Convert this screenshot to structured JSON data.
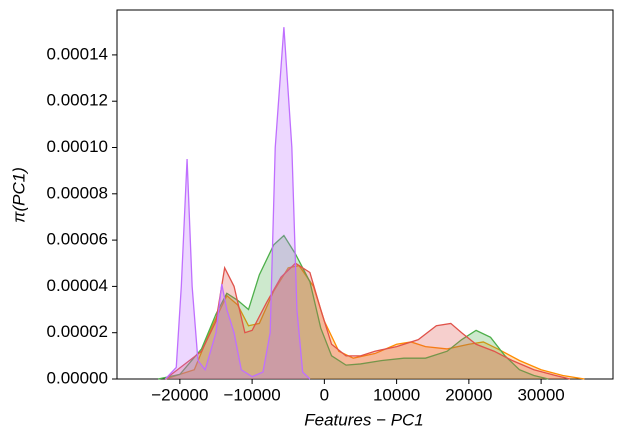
{
  "chart_data": {
    "type": "area",
    "x_label": "Features − PC1",
    "y_label": "π(PC1)",
    "xlim": [
      -28700,
      39950
    ],
    "ylim": [
      0,
      0.0001594
    ],
    "xticks": [
      {
        "value": -20000,
        "label": "−20000"
      },
      {
        "value": -10000,
        "label": "−10000"
      },
      0,
      10000,
      20000,
      30000
    ],
    "yticks": [
      {
        "value": 0,
        "label": "0.00000"
      },
      {
        "value": 2e-05,
        "label": "0.00002"
      },
      {
        "value": 4e-05,
        "label": "0.00004"
      },
      {
        "value": 6e-05,
        "label": "0.00006"
      },
      {
        "value": 8e-05,
        "label": "0.00008"
      },
      {
        "value": 0.0001,
        "label": "0.00010"
      },
      {
        "value": 0.00012,
        "label": "0.00012"
      },
      {
        "value": 0.00014,
        "label": "0.00014"
      }
    ],
    "grid": false,
    "series": [
      {
        "color": "#ff8c00",
        "x": [
          -22000,
          -18000,
          -15500,
          -13500,
          -12000,
          -10500,
          -9000,
          -7000,
          -5000,
          -3500,
          -1500,
          0,
          2000,
          4000,
          7000,
          10000,
          12000,
          14000,
          17000,
          20000,
          22000,
          24000,
          27000,
          30000,
          33000,
          36000
        ],
        "values": [
          0,
          4e-06,
          2.3e-05,
          3.6e-05,
          3.2e-05,
          2.3e-05,
          2.4e-05,
          3.8e-05,
          4.8e-05,
          4.9e-05,
          4e-05,
          2.5e-05,
          1.2e-05,
          9e-06,
          1.1e-05,
          1.5e-05,
          1.6e-05,
          1.4e-05,
          1.3e-05,
          1.5e-05,
          1.6e-05,
          1.3e-05,
          8e-06,
          4e-06,
          1.5e-06,
          0
        ]
      },
      {
        "color": "#4daf4a",
        "x": [
          -23000,
          -20000,
          -17000,
          -15000,
          -13500,
          -12000,
          -10500,
          -9000,
          -7000,
          -5600,
          -4000,
          -2000,
          -500,
          1000,
          3000,
          5000,
          8000,
          11000,
          14000,
          17000,
          19000,
          21000,
          23000,
          25000,
          27000,
          29000,
          31000
        ],
        "values": [
          0,
          2e-06,
          1.3e-05,
          2.8e-05,
          3.7e-05,
          3.4e-05,
          3e-05,
          4.5e-05,
          5.8e-05,
          6.2e-05,
          5.4e-05,
          4.2e-05,
          2.2e-05,
          1e-05,
          6e-06,
          6.5e-06,
          8e-06,
          9e-06,
          9e-06,
          1.2e-05,
          1.7e-05,
          2.1e-05,
          1.8e-05,
          1e-05,
          4e-06,
          1.5e-06,
          0
        ]
      },
      {
        "color": "#e0524a",
        "x": [
          -22000,
          -17000,
          -15000,
          -13800,
          -12500,
          -11000,
          -10000,
          -8000,
          -6000,
          -4000,
          -2000,
          -500,
          1000,
          3000,
          5000,
          7000,
          10000,
          13000,
          15500,
          17500,
          19000,
          21000,
          23500,
          26000,
          29000,
          32000,
          34000
        ],
        "values": [
          0,
          1.2e-05,
          2.5e-05,
          4.8e-05,
          4e-05,
          2e-05,
          2.1e-05,
          3.3e-05,
          4.4e-05,
          5e-05,
          4.6e-05,
          3e-05,
          1.5e-05,
          1e-05,
          1e-05,
          1.2e-05,
          1.4e-05,
          1.7e-05,
          2.3e-05,
          2.4e-05,
          2e-05,
          1.5e-05,
          1.2e-05,
          8e-06,
          4e-06,
          1.5e-06,
          0
        ]
      },
      {
        "color": "#bf6fff",
        "x": [
          -22000,
          -20500,
          -19800,
          -19000,
          -18300,
          -17500,
          -16500,
          -15000,
          -14200,
          -13500,
          -12500,
          -11500,
          -10000,
          -8500,
          -7500,
          -6800,
          -5600,
          -4500,
          -3800,
          -3000,
          -2000
        ],
        "values": [
          0,
          5e-06,
          4e-05,
          9.5e-05,
          4e-05,
          8e-06,
          4e-06,
          2e-05,
          4.1e-05,
          3e-05,
          2e-05,
          4e-06,
          1e-06,
          3e-06,
          2e-05,
          0.0001,
          0.000152,
          0.0001,
          3e-05,
          3e-06,
          0
        ]
      }
    ]
  }
}
